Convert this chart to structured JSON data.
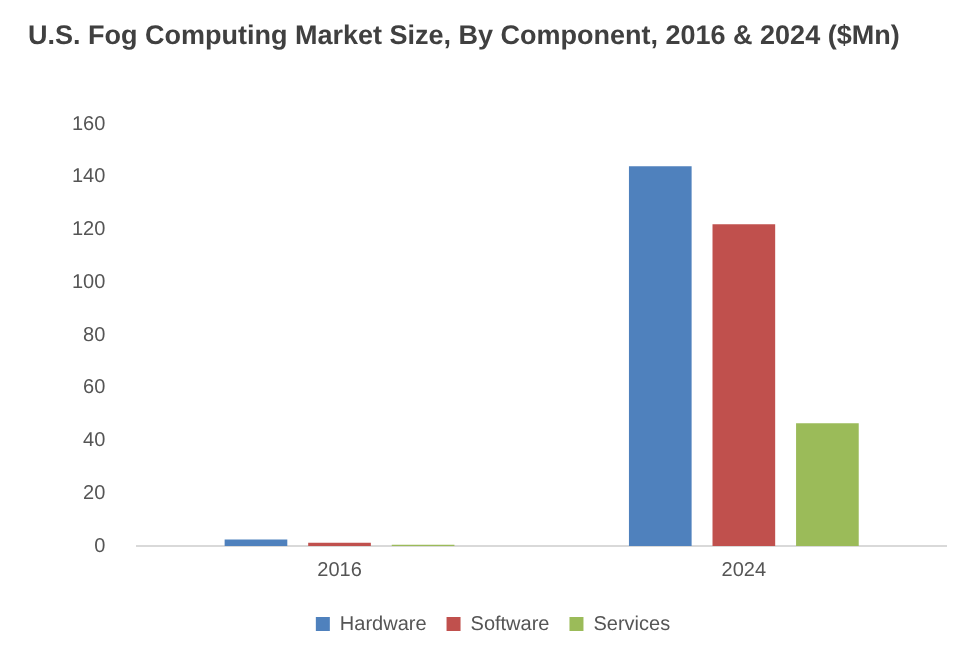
{
  "chart_data": {
    "type": "bar",
    "title": "U.S. Fog Computing Market Size, By Component, 2016 & 2024 ($Mn)",
    "categories": [
      "2016",
      "2024"
    ],
    "series": [
      {
        "name": "Hardware",
        "color": "#4f81bd",
        "values": [
          2.5,
          144
        ]
      },
      {
        "name": "Software",
        "color": "#c0504d",
        "values": [
          1.2,
          122
        ]
      },
      {
        "name": "Services",
        "color": "#9bbb59",
        "values": [
          0.5,
          46.5
        ]
      }
    ],
    "ylim": [
      0,
      160
    ],
    "yticks": [
      0,
      20,
      40,
      60,
      80,
      100,
      120,
      140,
      160
    ],
    "grid": false,
    "legend": "bottom"
  }
}
